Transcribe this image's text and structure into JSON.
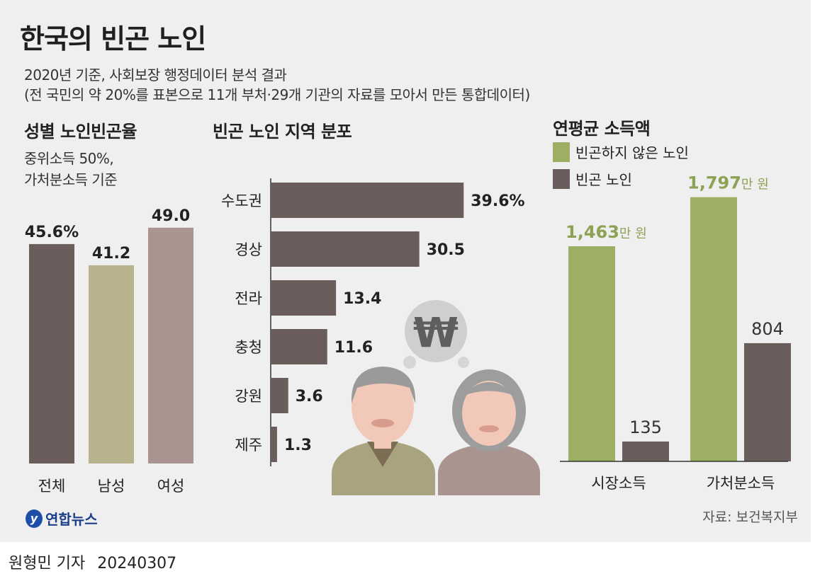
{
  "title": "한국의 빈곤 노인",
  "subtitle": "2020년 기준, 사회보장 행정데이터 분석 결과",
  "subtitle_note": "(전 국민의 약 20%를 표본으로 11개 부처·29개 기관의 자료를 모아서 만든 통합데이터)",
  "colors": {
    "dark": "#6b5d5c",
    "khaki": "#b7b18c",
    "pink": "#a9948f",
    "green": "#9caf63",
    "panel": "#efefef"
  },
  "chart_data": [
    {
      "type": "bar",
      "title": "성별 노인빈곤율",
      "note_lines": [
        "중위소득 50%,",
        "가처분소득 기준"
      ],
      "categories": [
        "전체",
        "남성",
        "여성"
      ],
      "values": [
        45.6,
        41.2,
        49.0
      ],
      "value_labels": [
        "45.6%",
        "41.2",
        "49.0"
      ],
      "ylim": [
        0,
        50
      ],
      "bar_colors": [
        "#6b5d5c",
        "#b7b18c",
        "#a9948f"
      ]
    },
    {
      "type": "bar",
      "orientation": "horizontal",
      "title": "빈곤 노인 지역 분포",
      "categories": [
        "수도권",
        "경상",
        "전라",
        "충청",
        "강원",
        "제주"
      ],
      "values": [
        39.6,
        30.5,
        13.4,
        11.6,
        3.6,
        1.3
      ],
      "value_labels": [
        "39.6%",
        "30.5",
        "13.4",
        "11.6",
        "3.6",
        "1.3"
      ],
      "xlim": [
        0,
        40
      ]
    },
    {
      "type": "bar",
      "title": "연평균 소득액",
      "categories": [
        "시장소득",
        "가처분소득"
      ],
      "series": [
        {
          "name": "빈곤하지 않은 노인",
          "values": [
            1463,
            1797
          ],
          "value_labels": [
            "1,463",
            "1,797"
          ],
          "color": "#9caf63"
        },
        {
          "name": "빈곤 노인",
          "values": [
            135,
            804
          ],
          "value_labels": [
            "135",
            "804"
          ],
          "color": "#6b5d5c"
        }
      ],
      "unit": "만 원",
      "ylim": [
        0,
        1800
      ]
    }
  ],
  "source": "자료: 보건복지부",
  "logo_text": "연합뉴스",
  "reporter": "원형민 기자",
  "date": "20240307",
  "icons": {
    "illustration": "elderly-couple-with-won-thought-bubble",
    "logo": "yonhap-logo-icon"
  }
}
